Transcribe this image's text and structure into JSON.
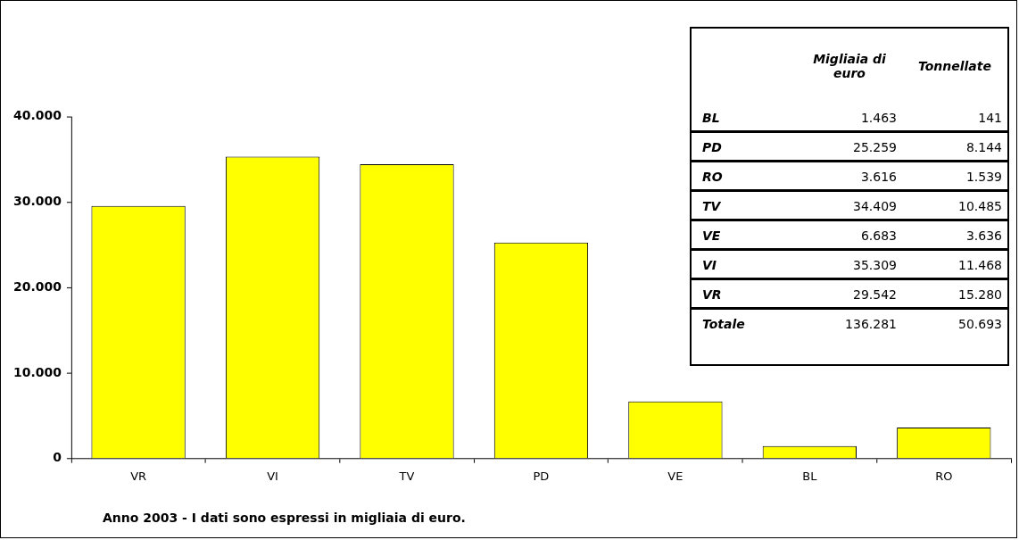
{
  "chart_data": [
    {
      "type": "bar",
      "categories": [
        "VR",
        "VI",
        "TV",
        "PD",
        "VE",
        "BL",
        "RO"
      ],
      "values": [
        29542,
        35309,
        34409,
        25259,
        6683,
        1463,
        3616
      ],
      "color": "#ffff00",
      "ylim": [
        0,
        40000
      ],
      "yticks": [
        {
          "value": 0,
          "label": "0"
        },
        {
          "value": 10000,
          "label": "10.000"
        },
        {
          "value": 20000,
          "label": "20.000"
        },
        {
          "value": 30000,
          "label": "30.000"
        },
        {
          "value": 40000,
          "label": "40.000"
        }
      ],
      "grid": false,
      "legend": false,
      "annotations": [
        "Anno 2003 - I dati sono espressi in migliaia di euro."
      ]
    },
    {
      "type": "other",
      "categories": [
        "BL",
        "PD",
        "RO",
        "TV",
        "VE",
        "VI",
        "VR",
        "Totale"
      ],
      "data_labels": true,
      "series": [
        {
          "name": "Migliaia di euro",
          "values": [
            1463,
            25259,
            3616,
            34409,
            6683,
            35309,
            29542,
            136281
          ],
          "value_labels": [
            "1.463",
            "25.259",
            "3.616",
            "34.409",
            "6.683",
            "35.309",
            "29.542",
            "136.281"
          ]
        },
        {
          "name": "Tonnellate",
          "values": [
            141,
            8144,
            1539,
            10485,
            3636,
            11468,
            15280,
            50693
          ],
          "value_labels": [
            "141",
            "8.144",
            "1.539",
            "10.485",
            "3.636",
            "11.468",
            "15.280",
            "50.693"
          ]
        }
      ]
    }
  ]
}
